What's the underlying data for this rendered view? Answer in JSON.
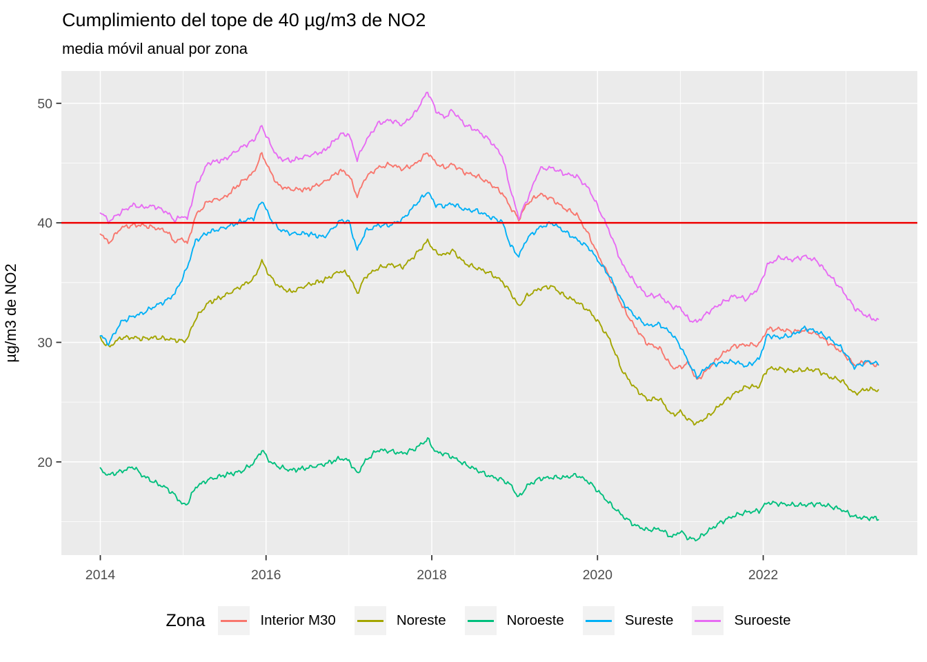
{
  "chart_data": {
    "type": "line",
    "title": "Cumplimiento del tope de 40 µg/m3 de NO2",
    "subtitle": "media móvil anual por zona",
    "xlabel": "",
    "ylabel": "µg/m3 de NO2",
    "xlim": [
      2013.53,
      2023.86
    ],
    "ylim": [
      12.2,
      52.7
    ],
    "x_ticks": [
      2014,
      2016,
      2018,
      2020,
      2022
    ],
    "x_minor_ticks": [
      2015,
      2017,
      2019,
      2021,
      2023
    ],
    "y_ticks": [
      20,
      30,
      40,
      50
    ],
    "y_minor_ticks": [
      15,
      25,
      35,
      45
    ],
    "grid": true,
    "legend_position": "bottom",
    "panel_background": "#EBEBEB",
    "grid_color": "#FFFFFF",
    "tick_label_color": "#4D4D4D",
    "axis_tick_color": "#333333",
    "legend_key_background": "#F2F2F2",
    "hline": {
      "value": 40,
      "color": "#EE0000"
    },
    "legend_title": "Zona",
    "x": [
      2014.0,
      2014.1,
      2014.25,
      2014.4,
      2014.5,
      2014.65,
      2014.8,
      2014.9,
      2015.0,
      2015.05,
      2015.15,
      2015.3,
      2015.5,
      2015.7,
      2015.85,
      2015.95,
      2016.05,
      2016.15,
      2016.3,
      2016.5,
      2016.7,
      2016.9,
      2017.0,
      2017.1,
      2017.2,
      2017.35,
      2017.5,
      2017.65,
      2017.8,
      2017.95,
      2018.05,
      2018.15,
      2018.25,
      2018.4,
      2018.55,
      2018.7,
      2018.85,
      2018.95,
      2019.05,
      2019.15,
      2019.3,
      2019.45,
      2019.6,
      2019.75,
      2019.9,
      2020.0,
      2020.15,
      2020.3,
      2020.45,
      2020.6,
      2020.75,
      2020.9,
      2021.0,
      2021.1,
      2021.2,
      2021.35,
      2021.5,
      2021.65,
      2021.8,
      2021.95,
      2022.05,
      2022.2,
      2022.35,
      2022.5,
      2022.65,
      2022.8,
      2022.95,
      2023.1,
      2023.25,
      2023.39
    ],
    "series": [
      {
        "name": "Interior M30",
        "color": "#F8766D",
        "values": [
          39.2,
          38.3,
          39.6,
          39.8,
          39.8,
          39.6,
          39.3,
          38.4,
          38.7,
          38.2,
          40.6,
          41.8,
          42.1,
          43.4,
          44.2,
          45.8,
          44.3,
          43.1,
          42.8,
          42.8,
          43.4,
          44.4,
          44.0,
          42.2,
          43.8,
          44.6,
          44.9,
          44.5,
          44.9,
          45.9,
          45.0,
          44.6,
          44.9,
          44.2,
          43.9,
          43.3,
          42.5,
          41.3,
          40.3,
          41.6,
          42.4,
          42.0,
          41.2,
          40.7,
          38.9,
          37.4,
          35.4,
          33.0,
          31.3,
          29.9,
          29.5,
          27.9,
          27.9,
          28.3,
          26.8,
          27.9,
          29.0,
          29.7,
          29.8,
          29.8,
          31.1,
          31.1,
          30.9,
          31.0,
          30.7,
          29.9,
          29.2,
          28.1,
          28.4,
          28.0
        ]
      },
      {
        "name": "Noreste",
        "color": "#A3A500",
        "values": [
          30.3,
          29.6,
          30.4,
          30.4,
          30.3,
          30.4,
          30.3,
          30.2,
          30.1,
          30.3,
          32.0,
          33.3,
          33.9,
          34.7,
          35.3,
          36.8,
          35.5,
          34.7,
          34.2,
          34.8,
          35.2,
          36.0,
          35.6,
          34.1,
          35.5,
          36.2,
          36.5,
          36.3,
          37.3,
          38.5,
          37.5,
          37.3,
          37.7,
          36.6,
          36.2,
          35.8,
          35.1,
          34.2,
          33.0,
          33.9,
          34.5,
          34.7,
          33.9,
          33.4,
          32.6,
          31.8,
          30.2,
          27.6,
          26.2,
          25.2,
          25.3,
          23.9,
          24.2,
          23.5,
          23.2,
          23.9,
          24.9,
          25.7,
          26.3,
          26.3,
          27.8,
          27.8,
          27.6,
          27.7,
          27.7,
          27.1,
          26.8,
          25.7,
          26.1,
          26.0
        ]
      },
      {
        "name": "Noroeste",
        "color": "#00BF7D",
        "values": [
          19.3,
          18.9,
          19.2,
          19.6,
          18.9,
          18.3,
          17.8,
          17.2,
          16.4,
          16.5,
          17.9,
          18.5,
          18.9,
          19.2,
          19.9,
          21.0,
          20.0,
          19.6,
          19.3,
          19.5,
          19.8,
          20.3,
          20.1,
          19.0,
          20.1,
          21.0,
          20.9,
          20.7,
          21.1,
          21.9,
          20.8,
          20.7,
          20.4,
          19.8,
          19.3,
          18.8,
          18.5,
          18.1,
          17.0,
          18.0,
          18.6,
          18.7,
          18.7,
          18.9,
          18.3,
          17.6,
          16.5,
          15.5,
          14.7,
          14.3,
          14.4,
          13.7,
          14.2,
          13.6,
          13.5,
          14.3,
          15.0,
          15.5,
          15.8,
          15.9,
          16.6,
          16.5,
          16.4,
          16.4,
          16.5,
          16.3,
          16.0,
          15.4,
          15.3,
          15.3
        ]
      },
      {
        "name": "Sureste",
        "color": "#00B0F6",
        "values": [
          30.6,
          29.9,
          31.7,
          32.2,
          32.4,
          33.0,
          33.5,
          34.1,
          35.5,
          36.3,
          38.5,
          39.2,
          39.6,
          40.1,
          40.4,
          41.9,
          40.4,
          39.5,
          39.1,
          39.1,
          38.8,
          40.2,
          40.1,
          37.7,
          39.3,
          39.8,
          39.8,
          40.3,
          41.5,
          42.6,
          41.5,
          41.4,
          41.6,
          41.1,
          41.0,
          40.5,
          40.1,
          38.1,
          37.2,
          38.7,
          39.6,
          40.0,
          39.3,
          38.6,
          37.9,
          36.9,
          35.5,
          33.4,
          32.2,
          31.4,
          31.5,
          30.7,
          29.7,
          28.3,
          27.1,
          28.1,
          28.3,
          28.4,
          28.0,
          28.6,
          30.6,
          30.4,
          30.6,
          31.2,
          30.9,
          30.3,
          29.5,
          27.9,
          28.4,
          28.2
        ]
      },
      {
        "name": "Suroeste",
        "color": "#E76BF3",
        "values": [
          41.0,
          40.1,
          40.9,
          41.5,
          41.3,
          41.4,
          40.9,
          40.2,
          40.6,
          40.3,
          43.0,
          45.0,
          45.3,
          46.3,
          46.9,
          48.1,
          46.6,
          45.4,
          45.2,
          45.6,
          46.0,
          47.4,
          47.4,
          45.3,
          46.8,
          48.3,
          48.6,
          48.2,
          49.2,
          51.0,
          49.4,
          48.8,
          49.4,
          48.2,
          47.7,
          46.9,
          45.6,
          42.8,
          40.4,
          41.9,
          44.5,
          44.6,
          44.1,
          43.9,
          42.8,
          41.4,
          39.2,
          36.5,
          35.0,
          33.9,
          33.9,
          33.0,
          32.9,
          31.9,
          31.7,
          32.6,
          33.3,
          33.9,
          33.6,
          34.6,
          36.5,
          37.1,
          36.9,
          37.2,
          36.8,
          35.6,
          34.4,
          32.9,
          32.2,
          31.8
        ]
      }
    ]
  }
}
